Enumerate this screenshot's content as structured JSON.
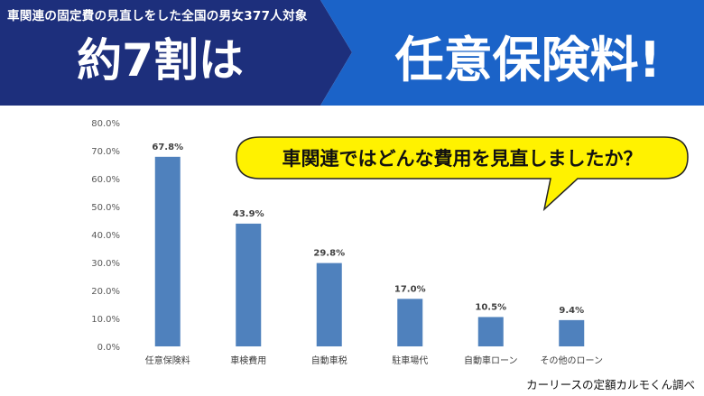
{
  "banner": {
    "subtitle": "車関連の固定費の見直しをした全国の男女377人対象",
    "headline_left": "約7割は",
    "headline_right": "任意保険料!",
    "left_color": "#1d2f7c",
    "right_color": "#1b63c8"
  },
  "callout": {
    "text": "車関連ではどんな費用を見直しましたか？",
    "fill_color": "#fff200"
  },
  "source": "カーリースの定額カルモくん調べ",
  "chart_data": {
    "type": "bar",
    "title": "",
    "xlabel": "",
    "ylabel": "",
    "categories": [
      "任意保険料",
      "車検費用",
      "自動車税",
      "駐車場代",
      "自動車ローン",
      "その他のローン"
    ],
    "values": [
      67.8,
      43.9,
      29.8,
      17.0,
      10.5,
      9.4
    ],
    "value_labels": [
      "67.8%",
      "43.9%",
      "29.8%",
      "17.0%",
      "10.5%",
      "9.4%"
    ],
    "yticks": [
      "0.0%",
      "10.0%",
      "20.0%",
      "30.0%",
      "40.0%",
      "50.0%",
      "60.0%",
      "70.0%",
      "80.0%"
    ],
    "ylim": [
      0,
      80
    ],
    "grid": false,
    "bar_color": "#4f81bd"
  }
}
